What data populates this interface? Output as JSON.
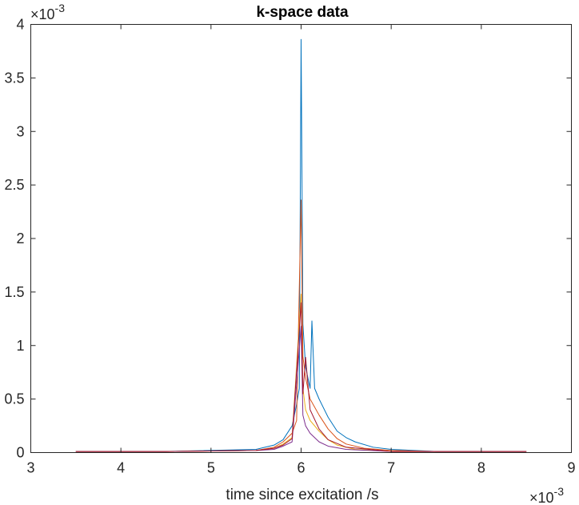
{
  "chart_data": {
    "type": "line",
    "title": "k-space data",
    "xlabel": "time since excitation /s",
    "ylabel": "",
    "x_multiplier_label": "×10",
    "x_multiplier_exponent": "-3",
    "y_multiplier_label": "×10",
    "y_multiplier_exponent": "-3",
    "xlim": [
      0.003,
      0.009
    ],
    "ylim": [
      0,
      0.004
    ],
    "x_ticks": [
      {
        "value": 0.003,
        "label": "3"
      },
      {
        "value": 0.004,
        "label": "4"
      },
      {
        "value": 0.005,
        "label": "5"
      },
      {
        "value": 0.006,
        "label": "6"
      },
      {
        "value": 0.007,
        "label": "7"
      },
      {
        "value": 0.008,
        "label": "8"
      },
      {
        "value": 0.009,
        "label": "9"
      }
    ],
    "y_ticks": [
      {
        "value": 0,
        "label": "0"
      },
      {
        "value": 0.0005,
        "label": "0.5"
      },
      {
        "value": 0.001,
        "label": "1"
      },
      {
        "value": 0.0015,
        "label": "1.5"
      },
      {
        "value": 0.002,
        "label": "2"
      },
      {
        "value": 0.0025,
        "label": "2.5"
      },
      {
        "value": 0.003,
        "label": "3"
      },
      {
        "value": 0.0035,
        "label": "3.5"
      },
      {
        "value": 0.004,
        "label": "4"
      }
    ],
    "grid": false,
    "box": true,
    "series": [
      {
        "color": "#0072BD",
        "x": [
          0.0035,
          0.0045,
          0.0055,
          0.0057,
          0.0058,
          0.0059,
          0.00595,
          0.00598,
          0.006,
          0.00602,
          0.00605,
          0.0061,
          0.00612,
          0.00615,
          0.0062,
          0.0063,
          0.0064,
          0.0065,
          0.0066,
          0.0068,
          0.007,
          0.0075,
          0.0085
        ],
        "y": [
          1e-05,
          1e-05,
          3e-05,
          7e-05,
          0.00012,
          0.00025,
          0.00045,
          0.0006,
          0.00386,
          0.0012,
          0.0008,
          0.0006,
          0.00123,
          0.0006,
          0.0005,
          0.00033,
          0.0002,
          0.00014,
          0.0001,
          5e-05,
          3e-05,
          1e-05,
          1e-05
        ]
      },
      {
        "color": "#D95319",
        "x": [
          0.0035,
          0.0045,
          0.0055,
          0.0057,
          0.0058,
          0.0059,
          0.00595,
          0.006,
          0.00602,
          0.00605,
          0.0061,
          0.0062,
          0.0063,
          0.0064,
          0.0065,
          0.0067,
          0.007,
          0.0075,
          0.0085
        ],
        "y": [
          1e-05,
          1e-05,
          2e-05,
          5e-05,
          0.0001,
          0.00018,
          0.0003,
          0.00236,
          0.0009,
          0.0007,
          0.0005,
          0.00035,
          0.00022,
          0.00013,
          8e-05,
          4e-05,
          2e-05,
          1e-05,
          1e-05
        ]
      },
      {
        "color": "#EDB120",
        "x": [
          0.0035,
          0.0045,
          0.0055,
          0.0057,
          0.0058,
          0.0059,
          0.006,
          0.00602,
          0.00605,
          0.0061,
          0.0062,
          0.0063,
          0.0064,
          0.0066,
          0.007,
          0.0085
        ],
        "y": [
          1e-05,
          1e-05,
          2e-05,
          4e-05,
          8e-05,
          0.00014,
          0.00148,
          0.0006,
          0.0004,
          0.0003,
          0.0002,
          0.00012,
          7e-05,
          3e-05,
          1e-05,
          1e-05
        ]
      },
      {
        "color": "#7E2F8E",
        "x": [
          0.0035,
          0.0045,
          0.0055,
          0.0057,
          0.0058,
          0.0059,
          0.006,
          0.00602,
          0.00605,
          0.0061,
          0.0062,
          0.0063,
          0.0065,
          0.007,
          0.0085
        ],
        "y": [
          1e-05,
          1e-05,
          2e-05,
          3e-05,
          6e-05,
          0.0001,
          0.00118,
          0.00035,
          0.00025,
          0.00018,
          0.0001,
          6e-05,
          3e-05,
          1e-05,
          1e-05
        ]
      },
      {
        "color": "#A2142F",
        "x": [
          0.0035,
          0.0045,
          0.0055,
          0.0057,
          0.0058,
          0.0059,
          0.006,
          0.00602,
          0.00605,
          0.0061,
          0.0062,
          0.0063,
          0.0065,
          0.007,
          0.0085
        ],
        "y": [
          1e-05,
          1e-05,
          2e-05,
          4e-05,
          7e-05,
          0.00013,
          0.0014,
          0.00055,
          0.00089,
          0.0004,
          0.00022,
          0.00012,
          5e-05,
          1e-05,
          1e-05
        ]
      }
    ]
  }
}
